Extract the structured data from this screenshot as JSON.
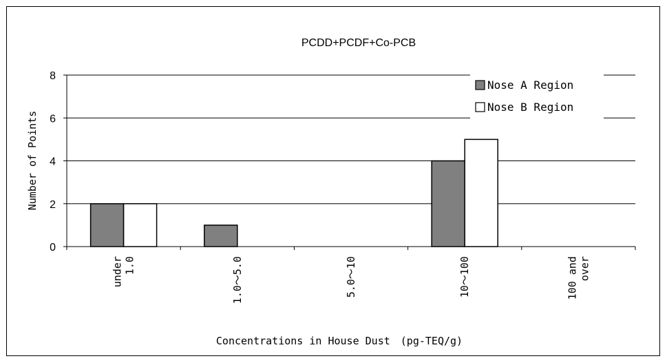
{
  "chart_data": {
    "type": "bar",
    "title": "PCDD+PCDF+Co-PCB",
    "xlabel": "Concentrations in House Dust　(pg-TEQ/g)",
    "ylabel": "Number of Points",
    "ylim": [
      0,
      8
    ],
    "yticks": [
      0,
      2,
      4,
      6,
      8
    ],
    "grid": true,
    "legend_position": "top-right",
    "categories": [
      [
        "under",
        "1.0"
      ],
      [
        "1.0～5.0"
      ],
      [
        "5.0～10"
      ],
      [
        "10～100"
      ],
      [
        "100 and",
        "over"
      ]
    ],
    "series": [
      {
        "name": "Nose A Region",
        "values": [
          2,
          1,
          0,
          4,
          0
        ],
        "color": "#808080"
      },
      {
        "name": "Nose B Region",
        "values": [
          2,
          0,
          0,
          5,
          0
        ],
        "color": "#ffffff"
      }
    ]
  }
}
